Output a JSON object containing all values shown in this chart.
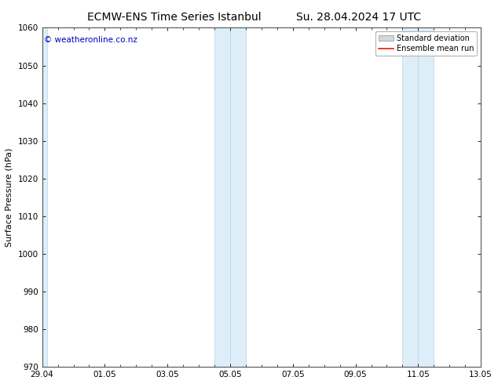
{
  "title_left": "ECMW-ENS Time Series Istanbul",
  "title_right": "Su. 28.04.2024 17 UTC",
  "ylabel": "Surface Pressure (hPa)",
  "ylim": [
    970,
    1060
  ],
  "yticks": [
    970,
    980,
    990,
    1000,
    1010,
    1020,
    1030,
    1040,
    1050,
    1060
  ],
  "xtick_labels": [
    "29.04",
    "01.05",
    "03.05",
    "05.05",
    "07.05",
    "09.05",
    "11.05",
    "13.05"
  ],
  "xtick_positions": [
    0,
    2,
    4,
    6,
    8,
    10,
    12,
    14
  ],
  "xlim": [
    0,
    14
  ],
  "shaded_bands": [
    {
      "x_start": -0.15,
      "x_end": 0.15
    },
    {
      "x_start": 5.5,
      "x_end": 6.0
    },
    {
      "x_start": 6.0,
      "x_end": 6.5
    },
    {
      "x_start": 11.5,
      "x_end": 12.0
    },
    {
      "x_start": 12.0,
      "x_end": 12.5
    }
  ],
  "shaded_color": "#ddeef8",
  "shaded_edge_color": "#b8d4e8",
  "watermark_text": "© weatheronline.co.nz",
  "watermark_color": "#0000bb",
  "legend_std_dev": "Standard deviation",
  "legend_mean": "Ensemble mean run",
  "std_dev_color": "#d0d8e0",
  "mean_line_color": "#dd2200",
  "background_color": "#ffffff",
  "title_fontsize": 10,
  "tick_fontsize": 7.5,
  "ylabel_fontsize": 8,
  "watermark_fontsize": 7.5,
  "legend_fontsize": 7
}
